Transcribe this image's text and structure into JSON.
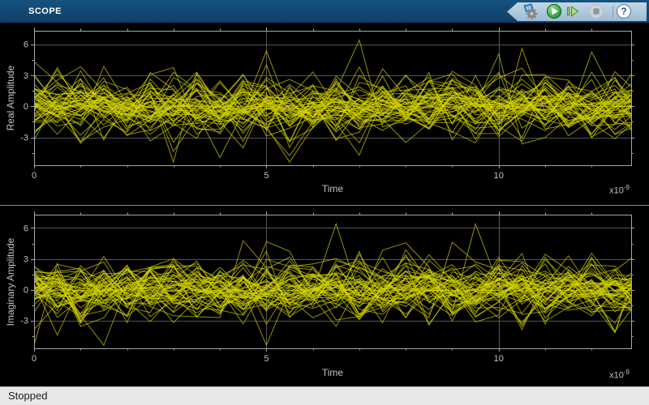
{
  "titlebar": {
    "title": "SCOPE"
  },
  "toolbar": {
    "help_glyph": "?",
    "buttons": [
      {
        "id": "simulate-settings",
        "icon": "gear-icon",
        "state": "enabled"
      },
      {
        "id": "run",
        "icon": "play-icon",
        "state": "enabled",
        "color": "#2e9e3e"
      },
      {
        "id": "step-forward",
        "icon": "step-forward-icon",
        "state": "enabled",
        "color": "#a8d96f"
      },
      {
        "id": "stop",
        "icon": "stop-icon",
        "state": "disabled",
        "color": "#8d969e"
      },
      {
        "id": "help",
        "icon": "question-icon",
        "state": "enabled",
        "color": "#1b5c95"
      }
    ]
  },
  "statusbar": {
    "text": "Stopped"
  },
  "chart_data": [
    {
      "type": "line",
      "title": "",
      "ylabel": "Real Amplitude",
      "xlabel": "Time",
      "x_scale_label": {
        "base": "x10",
        "exponent": "-9"
      },
      "xlim": [
        0,
        12.85
      ],
      "ylim": [
        -5.7,
        7.3
      ],
      "xticks": [
        0,
        5,
        10
      ],
      "xtick_labels": [
        "0",
        "5",
        "10"
      ],
      "x_minor_step": 1,
      "yticks": [
        6,
        3,
        0,
        -3
      ],
      "ytick_labels": [
        "6",
        "3",
        "0",
        "-3"
      ],
      "y_minor_step": 1.5,
      "grid": true,
      "legend": "none",
      "background": "#000000",
      "grid_color": "#545454",
      "axis_color": "#a6a6a6",
      "tick_label_color": "#c3c3c3",
      "trace_color": "#d6d600",
      "trace_opacity": 0.68,
      "signal": {
        "kind": "overlapping-random-noise-traces",
        "n_traces": 50,
        "x_step": 0.5,
        "mean": 0,
        "std_main": 1.35,
        "std_tail": 2.4,
        "tail_prob": 0.1,
        "clip": [
          -5.4,
          6.4
        ],
        "seed": 20231
      }
    },
    {
      "type": "line",
      "title": "",
      "ylabel": "Imaginary Amplitude",
      "xlabel": "Time",
      "x_scale_label": {
        "base": "x10",
        "exponent": "-9"
      },
      "xlim": [
        0,
        12.85
      ],
      "ylim": [
        -5.7,
        7.3
      ],
      "xticks": [
        0,
        5,
        10
      ],
      "xtick_labels": [
        "0",
        "5",
        "10"
      ],
      "x_minor_step": 1,
      "yticks": [
        6,
        3,
        0,
        -3
      ],
      "ytick_labels": [
        "6",
        "3",
        "0",
        "-3"
      ],
      "y_minor_step": 1.5,
      "grid": true,
      "legend": "none",
      "background": "#000000",
      "grid_color": "#545454",
      "axis_color": "#a6a6a6",
      "tick_label_color": "#c3c3c3",
      "trace_color": "#d6d600",
      "trace_opacity": 0.68,
      "signal": {
        "kind": "overlapping-random-noise-traces",
        "n_traces": 50,
        "x_step": 0.5,
        "mean": 0,
        "std_main": 1.35,
        "std_tail": 2.4,
        "tail_prob": 0.1,
        "clip": [
          -5.4,
          6.4
        ],
        "seed": 77019
      }
    }
  ]
}
